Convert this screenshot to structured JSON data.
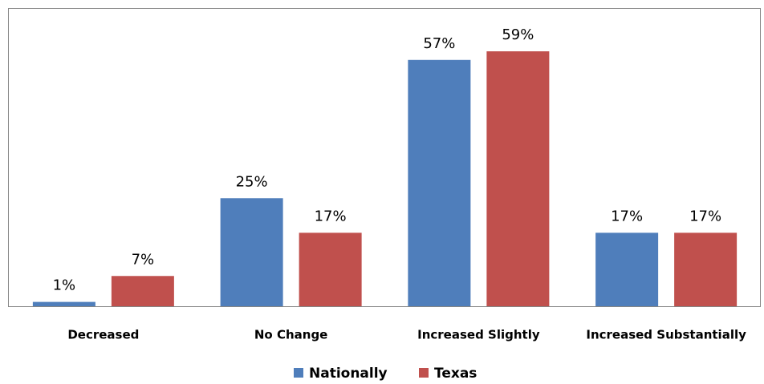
{
  "chart_data": {
    "type": "bar",
    "categories": [
      "Decreased",
      "No Change",
      "Increased Slightly",
      "Increased Substantially"
    ],
    "series": [
      {
        "name": "Nationally",
        "color": "#4f7ebb",
        "values": [
          1,
          25,
          57,
          17
        ],
        "value_labels": [
          "1%",
          "25%",
          "57%",
          "17%"
        ]
      },
      {
        "name": "Texas",
        "color": "#c0504d",
        "values": [
          7,
          17,
          59,
          17
        ],
        "value_labels": [
          "7%",
          "17%",
          "59%",
          "17%"
        ]
      }
    ],
    "legend": "bottom"
  }
}
